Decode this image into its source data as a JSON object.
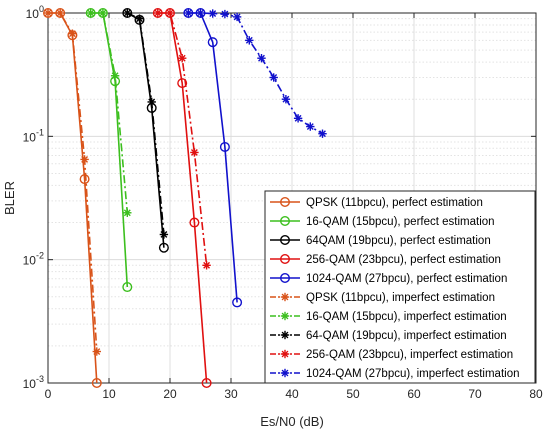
{
  "chart_data": {
    "type": "line",
    "xlabel": "Es/N0 (dB)",
    "ylabel": "BLER",
    "xlim": [
      0,
      80
    ],
    "ylim": [
      0.001,
      1
    ],
    "yscale": "log",
    "xticks": [
      0,
      10,
      20,
      30,
      40,
      50,
      60,
      70,
      80
    ],
    "xtick_labels": [
      "0",
      "10",
      "20",
      "30",
      "40",
      "50",
      "60",
      "70",
      "80"
    ],
    "yticks": [
      0.001,
      0.01,
      0.1,
      1
    ],
    "ytick_labels": [
      {
        "base": "10",
        "exp": "-3"
      },
      {
        "base": "10",
        "exp": "-2"
      },
      {
        "base": "10",
        "exp": "-1"
      },
      {
        "base": "10",
        "exp": "0"
      }
    ],
    "grid": true,
    "legend_position": "bottom-right",
    "series": [
      {
        "name": "QPSK (11bpcu), perfect estimation",
        "color": "#d95319",
        "style": "solid",
        "marker": "circle",
        "x": [
          0,
          2,
          4,
          6,
          8
        ],
        "y": [
          1,
          1,
          0.66,
          0.045,
          0.001
        ]
      },
      {
        "name": "16-QAM (15bpcu), perfect estimation",
        "color": "#3cbf1e",
        "style": "solid",
        "marker": "circle",
        "x": [
          7,
          9,
          11,
          13
        ],
        "y": [
          1,
          1,
          0.28,
          0.006
        ]
      },
      {
        "name": "64QAM (19bpcu), perfect estimation",
        "color": "#000000",
        "style": "solid",
        "marker": "circle",
        "x": [
          13,
          15,
          17,
          19
        ],
        "y": [
          1,
          0.88,
          0.17,
          0.0125
        ]
      },
      {
        "name": "256-QAM (23bpcu), perfect estimation",
        "color": "#e01010",
        "style": "solid",
        "marker": "circle",
        "x": [
          18,
          20,
          22,
          24,
          26
        ],
        "y": [
          1,
          1,
          0.27,
          0.02,
          0.001
        ]
      },
      {
        "name": "1024-QAM (27bpcu), perfect estimation",
        "color": "#1111cc",
        "style": "solid",
        "marker": "circle",
        "x": [
          23,
          25,
          27,
          29,
          31
        ],
        "y": [
          1,
          1,
          0.58,
          0.082,
          0.0045
        ]
      },
      {
        "name": "QPSK (11bpcu), imperfect estimation",
        "color": "#d95319",
        "style": "dashdot",
        "marker": "star",
        "x": [
          0,
          2,
          4,
          6,
          8
        ],
        "y": [
          1,
          1,
          0.68,
          0.065,
          0.0018
        ]
      },
      {
        "name": "16-QAM (15bpcu), imperfect estimation",
        "color": "#3cbf1e",
        "style": "dashdot",
        "marker": "star",
        "x": [
          7,
          9,
          11,
          13
        ],
        "y": [
          1,
          1,
          0.31,
          0.024
        ]
      },
      {
        "name": "64-QAM (19bpcu), imperfect estimation",
        "color": "#000000",
        "style": "dashdot",
        "marker": "star",
        "x": [
          13,
          15,
          17,
          19
        ],
        "y": [
          1,
          0.9,
          0.19,
          0.016
        ]
      },
      {
        "name": "256-QAM (23bpcu), imperfect estimation",
        "color": "#e01010",
        "style": "dashdot",
        "marker": "star",
        "x": [
          18,
          20,
          22,
          24,
          26
        ],
        "y": [
          1,
          1,
          0.43,
          0.074,
          0.009
        ]
      },
      {
        "name": "1024-QAM (27bpcu), imperfect estimation",
        "color": "#1111cc",
        "style": "dashdot",
        "marker": "star",
        "x": [
          23,
          25,
          27,
          29,
          31,
          33,
          35,
          37,
          39,
          41,
          43,
          45
        ],
        "y": [
          1,
          1,
          0.99,
          0.98,
          0.93,
          0.6,
          0.43,
          0.3,
          0.2,
          0.14,
          0.12,
          0.105
        ]
      }
    ]
  }
}
